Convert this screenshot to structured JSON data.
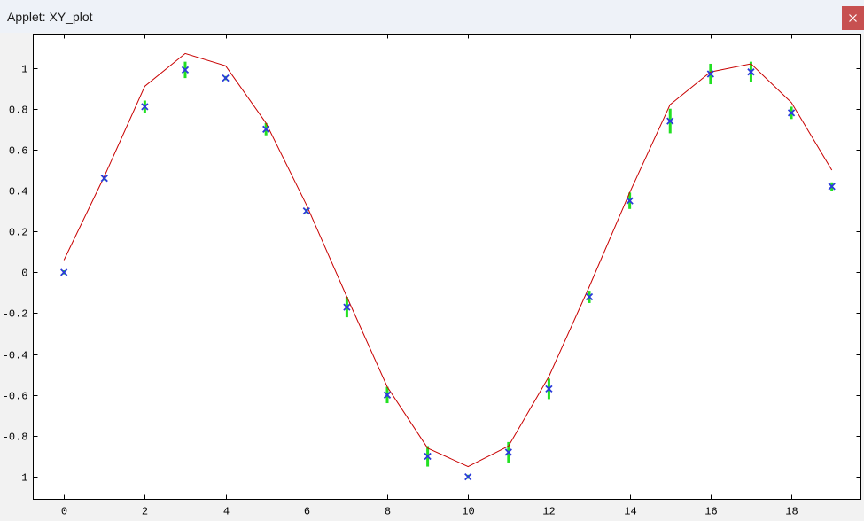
{
  "window": {
    "title": "Applet: XY_plot",
    "close_icon": "close-icon",
    "close_button_color": "#c75050"
  },
  "chart_data": {
    "type": "scatter",
    "title": "",
    "xlabel": "",
    "ylabel": "",
    "xlim": [
      -0.76,
      19.72
    ],
    "ylim": [
      -1.11,
      1.165
    ],
    "x_ticks": [
      "0",
      "2",
      "4",
      "6",
      "8",
      "10",
      "12",
      "14",
      "16",
      "18"
    ],
    "y_ticks": [
      "1",
      "0.8",
      "0.6",
      "0.4",
      "0.2",
      "0",
      "-0.2",
      "-0.4",
      "-0.6",
      "-0.8",
      "-1"
    ],
    "grid": false,
    "legend": false,
    "series": [
      {
        "type": "scatter",
        "marker": "x",
        "color": "#2b3bdb",
        "error_color": "#22e022",
        "x": [
          0,
          1,
          2,
          3,
          4,
          5,
          6,
          7,
          8,
          9,
          10,
          11,
          12,
          13,
          14,
          15,
          16,
          17,
          18,
          19
        ],
        "y": [
          0.0,
          0.46,
          0.81,
          0.99,
          0.95,
          0.7,
          0.3,
          -0.17,
          -0.6,
          -0.9,
          -1.0,
          -0.88,
          -0.57,
          -0.12,
          0.35,
          0.74,
          0.97,
          0.98,
          0.78,
          0.42
        ],
        "error": [
          0.01,
          0.01,
          0.03,
          0.04,
          0.01,
          0.03,
          0.01,
          0.05,
          0.04,
          0.05,
          0.01,
          0.05,
          0.05,
          0.03,
          0.04,
          0.06,
          0.05,
          0.05,
          0.03,
          0.02
        ]
      },
      {
        "type": "line",
        "color": "#c80000",
        "x": [
          0,
          1,
          2,
          3,
          4,
          5,
          6,
          7,
          8,
          9,
          10,
          11,
          12,
          13,
          14,
          15,
          16,
          17,
          18,
          19
        ],
        "y": [
          0.06,
          0.47,
          0.91,
          1.07,
          1.01,
          0.73,
          0.33,
          -0.12,
          -0.56,
          -0.86,
          -0.95,
          -0.85,
          -0.51,
          -0.07,
          0.39,
          0.82,
          0.98,
          1.02,
          0.83,
          0.5
        ]
      }
    ]
  }
}
